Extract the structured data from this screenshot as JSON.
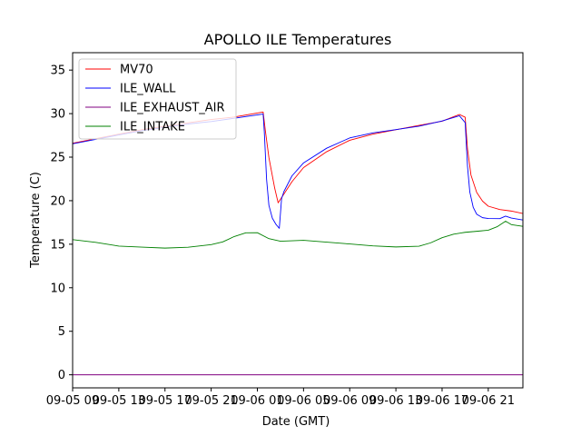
{
  "chart_data": {
    "type": "line",
    "title": "APOLLO ILE Temperatures",
    "xlabel": "Date (GMT)",
    "ylabel": "Temperature (C)",
    "xlim": [
      0,
      39
    ],
    "ylim": [
      -1.5,
      37
    ],
    "yticks": [
      0,
      5,
      10,
      15,
      20,
      25,
      30,
      35
    ],
    "xticks": [
      {
        "label": "09-05 09",
        "x": 0
      },
      {
        "label": "09-05 13",
        "x": 4
      },
      {
        "label": "09-05 17",
        "x": 8
      },
      {
        "label": "09-05 21",
        "x": 12
      },
      {
        "label": "09-06 01",
        "x": 16
      },
      {
        "label": "09-06 05",
        "x": 20
      },
      {
        "label": "09-06 09",
        "x": 24
      },
      {
        "label": "09-06 13",
        "x": 28
      },
      {
        "label": "09-06 17",
        "x": 32
      },
      {
        "label": "09-06 21",
        "x": 36
      }
    ],
    "legend_position": "top-left",
    "series": [
      {
        "name": "MV70",
        "color": "#ff0000",
        "x": [
          0,
          2,
          4,
          6,
          8,
          10,
          12,
          14,
          16.5,
          16.7,
          17.0,
          17.5,
          17.8,
          18.3,
          19,
          20,
          22,
          24,
          26,
          28,
          30,
          32,
          33.5,
          34.0,
          34.2,
          34.5,
          35,
          35.5,
          36,
          37,
          38,
          39
        ],
        "values": [
          26.6,
          27.1,
          27.6,
          28.1,
          28.5,
          28.9,
          29.3,
          29.6,
          30.2,
          28.0,
          25.0,
          21.5,
          19.8,
          20.8,
          22.2,
          23.8,
          25.6,
          26.9,
          27.6,
          28.1,
          28.6,
          29.1,
          29.9,
          29.6,
          26.0,
          23.0,
          21.0,
          20.0,
          19.4,
          19.0,
          18.8,
          18.5
        ]
      },
      {
        "name": "ILE_WALL",
        "color": "#0000ff",
        "x": [
          0,
          2,
          4,
          6,
          8,
          10,
          12,
          14,
          16.5,
          16.6,
          16.8,
          17.0,
          17.3,
          17.6,
          17.9,
          18.1,
          18.3,
          19,
          20,
          22,
          24,
          26,
          28,
          30,
          32,
          33.5,
          34.0,
          34.2,
          34.4,
          34.7,
          35,
          35.5,
          36,
          37,
          37.5,
          38,
          39
        ],
        "values": [
          26.5,
          27.0,
          27.5,
          28.0,
          28.4,
          28.8,
          29.1,
          29.5,
          30.0,
          28.0,
          22.5,
          19.5,
          18.0,
          17.3,
          16.8,
          20.2,
          21.0,
          22.8,
          24.3,
          26.0,
          27.2,
          27.8,
          28.2,
          28.6,
          29.2,
          29.8,
          29.0,
          24.0,
          21.0,
          19.2,
          18.4,
          18.0,
          17.9,
          17.9,
          18.2,
          18.0,
          17.8
        ]
      },
      {
        "name": "ILE_EXHAUST_AIR",
        "color": "#800080",
        "x": [
          0,
          39
        ],
        "values": [
          0.0,
          0.0
        ]
      },
      {
        "name": "ILE_INTAKE",
        "color": "#008000",
        "x": [
          0,
          2,
          4,
          6,
          8,
          10,
          12,
          13,
          14,
          15,
          16,
          17,
          18,
          20,
          22,
          24,
          26,
          28,
          30,
          31,
          32,
          33,
          34,
          35,
          36,
          36.8,
          37.5,
          38,
          39
        ],
        "values": [
          15.5,
          15.2,
          14.8,
          14.7,
          14.6,
          14.7,
          15.0,
          15.3,
          15.9,
          16.3,
          16.3,
          15.6,
          15.3,
          15.4,
          15.2,
          15.0,
          14.8,
          14.7,
          14.8,
          15.2,
          15.8,
          16.2,
          16.4,
          16.5,
          16.6,
          17.0,
          17.6,
          17.2,
          17.0
        ]
      }
    ]
  }
}
